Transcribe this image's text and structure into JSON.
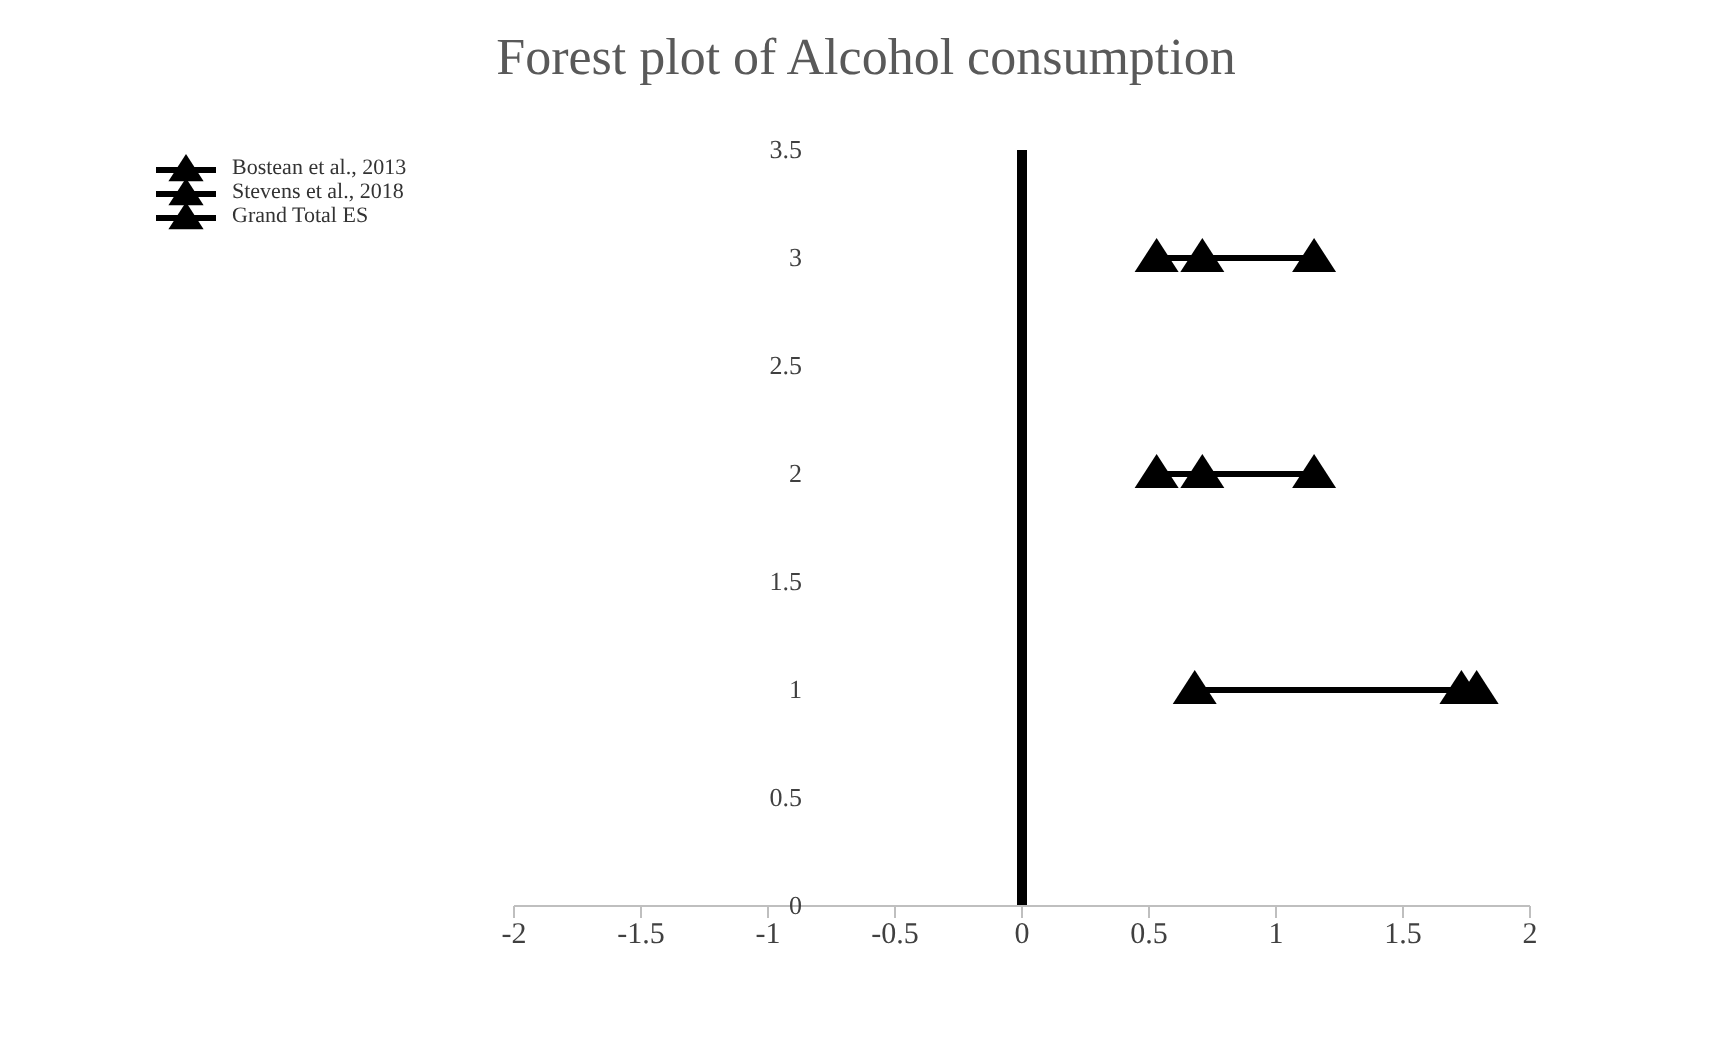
{
  "chart_data": {
    "type": "line",
    "title": "Forest plot of Alcohol  consumption",
    "series": [
      {
        "name": "Bostean et al., 2013",
        "color": "#000000",
        "x": [
          0.53,
          0.71,
          1.15
        ],
        "values": [
          3,
          3,
          3
        ]
      },
      {
        "name": "Stevens et al., 2018",
        "color": "#000000",
        "x": [
          0.53,
          0.71,
          1.15
        ],
        "values": [
          2,
          2,
          2
        ]
      },
      {
        "name": "Grand Total ES",
        "color": "#000000",
        "x": [
          0.68,
          1.73,
          1.79
        ],
        "values": [
          1,
          1,
          1
        ]
      }
    ],
    "xlim": [
      -2,
      2
    ],
    "xticks": [
      -2,
      -1.5,
      -1,
      -0.5,
      0,
      0.5,
      1,
      1.5,
      2
    ],
    "ylim": [
      0,
      3.5
    ],
    "yticks": [
      0,
      0.5,
      1,
      1.5,
      2,
      2.5,
      3,
      3.5
    ],
    "legend": "top left",
    "marker": "triangle",
    "line_style": "solid"
  }
}
